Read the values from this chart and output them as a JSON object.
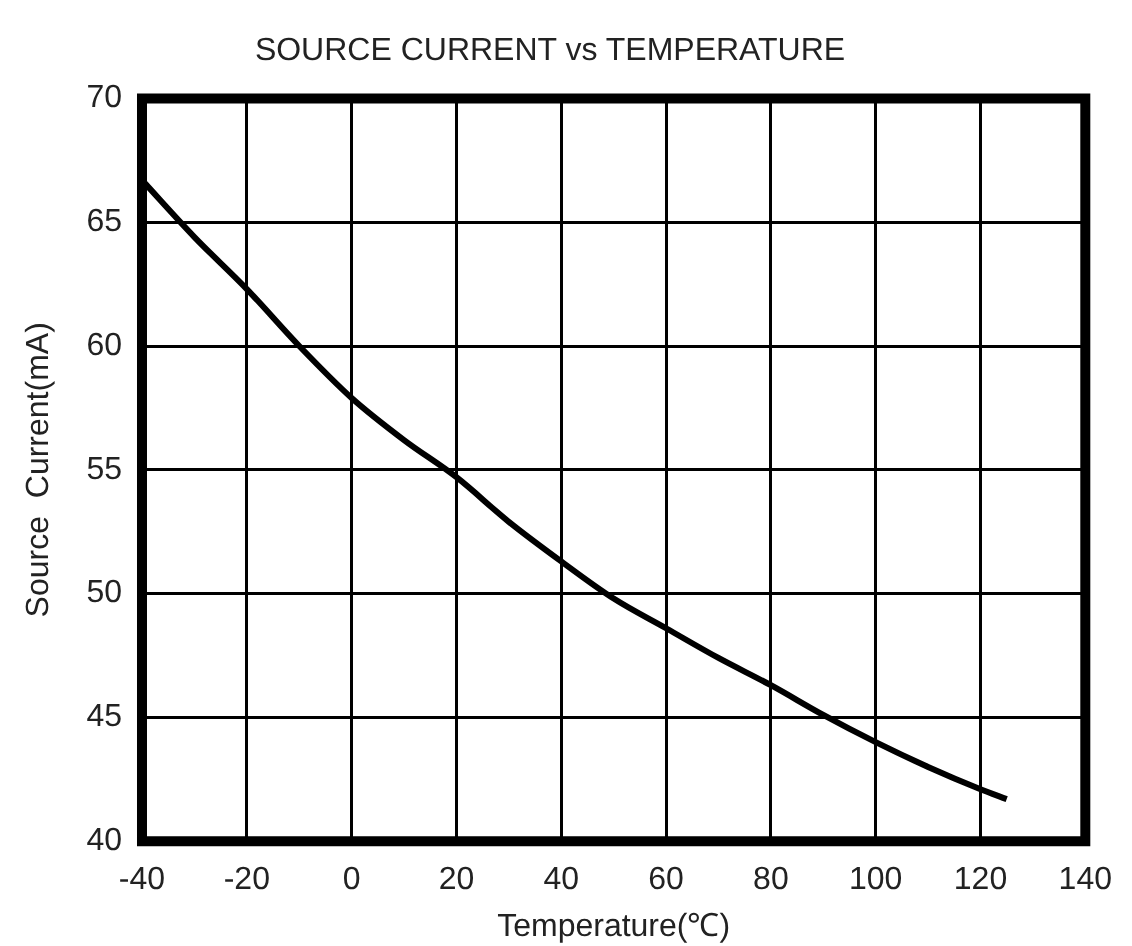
{
  "chart_data": {
    "type": "line",
    "title": "SOURCE CURRENT vs TEMPERATURE",
    "xlabel": "Temperature(℃)",
    "ylabel": "Source  Current(mA)",
    "x": [
      -40,
      -30,
      -20,
      -10,
      0,
      10,
      20,
      30,
      40,
      50,
      60,
      70,
      80,
      90,
      100,
      110,
      120,
      125
    ],
    "series": [
      {
        "color": "#000000",
        "values": [
          66.7,
          64.4,
          62.3,
          60,
          57.9,
          56.2,
          54.7,
          52.9,
          51.3,
          49.8,
          48.6,
          47.4,
          46.3,
          45.1,
          44,
          43,
          42.1,
          41.7
        ]
      }
    ],
    "xlim": [
      -40,
      140
    ],
    "xticks": [
      -40,
      -20,
      0,
      20,
      40,
      60,
      80,
      100,
      120,
      140
    ],
    "ylim": [
      40,
      70
    ],
    "yticks": [
      40,
      45,
      50,
      55,
      60,
      65,
      70
    ],
    "grid": true,
    "legend": false,
    "marker": "none",
    "line_style": "solid"
  }
}
